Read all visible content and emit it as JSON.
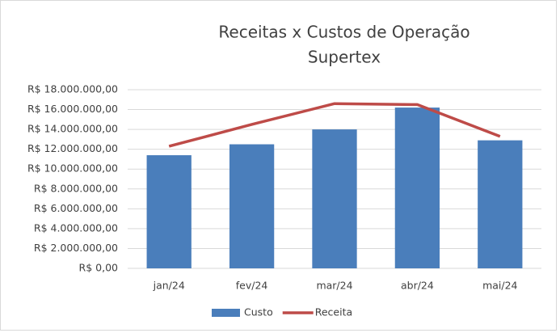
{
  "chart_data": {
    "type": "combo",
    "title": [
      "Receitas x Custos de Operação",
      "Supertex"
    ],
    "categories": [
      "jan/24",
      "fev/24",
      "mar/24",
      "abr/24",
      "mai/24"
    ],
    "series": [
      {
        "name": "Custo",
        "type": "bar",
        "color": "#4a7ebb",
        "values": [
          11400000,
          12500000,
          14000000,
          16200000,
          12900000
        ]
      },
      {
        "name": "Receita",
        "type": "line",
        "color": "#be4b48",
        "values": [
          12300000,
          14500000,
          16600000,
          16500000,
          13300000
        ]
      }
    ],
    "ylim": [
      0,
      18000000
    ],
    "yticks": [
      {
        "value": 0,
        "label": "R$ 0,00"
      },
      {
        "value": 2000000,
        "label": "R$ 2.000.000,00"
      },
      {
        "value": 4000000,
        "label": "R$ 4.000.000,00"
      },
      {
        "value": 6000000,
        "label": "R$ 6.000.000,00"
      },
      {
        "value": 8000000,
        "label": "R$ 8.000.000,00"
      },
      {
        "value": 10000000,
        "label": "R$ 10.000.000,00"
      },
      {
        "value": 12000000,
        "label": "R$ 12.000.000,00"
      },
      {
        "value": 14000000,
        "label": "R$ 14.000.000,00"
      },
      {
        "value": 16000000,
        "label": "R$ 16.000.000,00"
      },
      {
        "value": 18000000,
        "label": "R$ 18.000.000,00"
      }
    ],
    "grid": true,
    "legend": "bottom"
  }
}
